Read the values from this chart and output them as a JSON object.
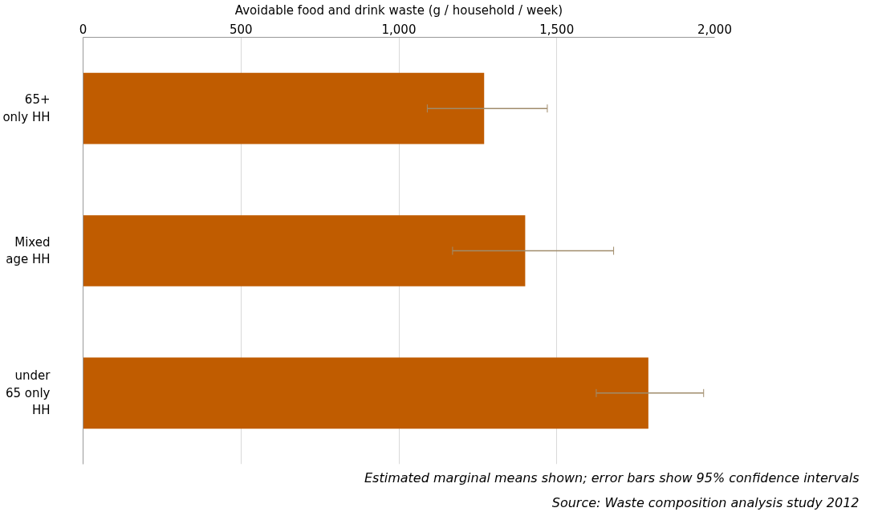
{
  "chart_data": {
    "type": "bar",
    "orientation": "horizontal",
    "xlabel": "Avoidable food and drink waste (g / household / week)",
    "categories": [
      "65+ only HH",
      "Mixed age HH",
      "under 65 only HH"
    ],
    "values": [
      1270,
      1400,
      1790
    ],
    "color": "#c05c00",
    "errors": [
      [
        1090,
        1470
      ],
      [
        1170,
        1680
      ],
      [
        1625,
        1965
      ]
    ],
    "xlim": [
      0,
      2000
    ],
    "xticks": [
      0,
      {
        "value": 500,
        "label": "500"
      },
      {
        "value": 1000,
        "label": "1,000"
      },
      {
        "value": 1500,
        "label": "1,500"
      },
      {
        "value": 2000,
        "label": "2,000"
      }
    ],
    "grid": "x",
    "annotations": [
      "Estimated marginal means shown; error bars show 95% confidence intervals",
      "Source: Waste composition analysis study 2012"
    ]
  }
}
